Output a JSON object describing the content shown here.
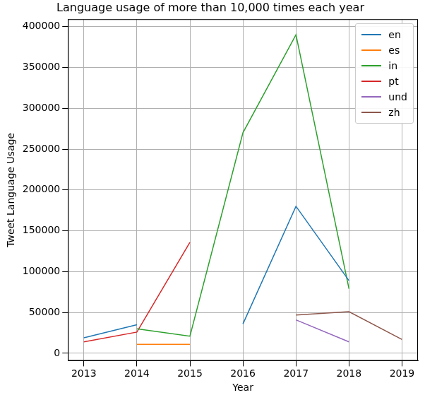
{
  "chart_data": {
    "type": "line",
    "title": "Language usage of more than 10,000 times each year",
    "x_label": "Year",
    "y_label": "Tweet Language Usage",
    "x": [
      2013,
      2014,
      2015,
      2016,
      2017,
      2018,
      2019
    ],
    "series": [
      {
        "name": "en",
        "color": "#1f77b4",
        "values": [
          19000,
          35000,
          null,
          36000,
          180000,
          89000,
          null
        ]
      },
      {
        "name": "es",
        "color": "#ff7f0e",
        "values": [
          null,
          11000,
          11000,
          null,
          null,
          null,
          null
        ]
      },
      {
        "name": "in",
        "color": "#2ca02c",
        "values": [
          null,
          30000,
          21000,
          270000,
          390000,
          79000,
          null
        ]
      },
      {
        "name": "pt",
        "color": "#d62728",
        "values": [
          14000,
          26000,
          136000,
          null,
          null,
          null,
          null
        ]
      },
      {
        "name": "und",
        "color": "#9467bd",
        "values": [
          null,
          null,
          null,
          null,
          41000,
          14000,
          null
        ]
      },
      {
        "name": "zh",
        "color": "#8c564b",
        "values": [
          null,
          null,
          null,
          null,
          47000,
          51000,
          17000
        ]
      }
    ],
    "xlim": [
      2012.7,
      2019.3
    ],
    "xticks": [
      2013,
      2014,
      2015,
      2016,
      2017,
      2018,
      2019
    ],
    "ylim": [
      -9000,
      409000
    ],
    "yticks": [
      0,
      50000,
      100000,
      150000,
      200000,
      250000,
      300000,
      350000,
      400000
    ],
    "grid": true,
    "legend": "upper right"
  }
}
